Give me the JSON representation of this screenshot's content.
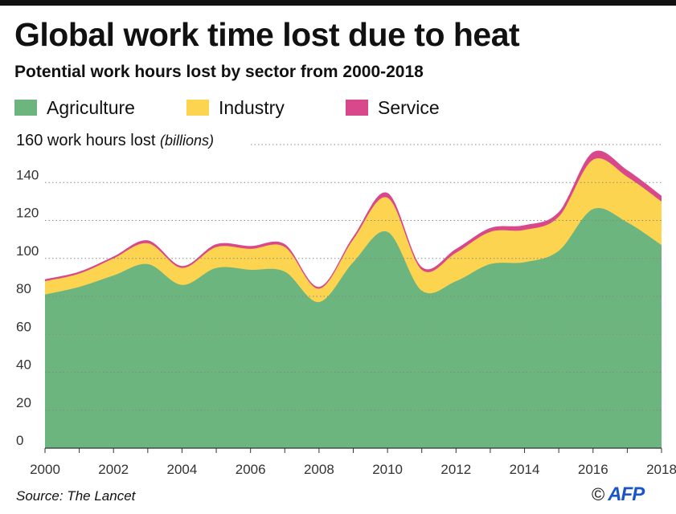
{
  "header": {
    "title": "Global work time lost due to heat",
    "subtitle": "Potential work hours lost by sector from 2000-2018"
  },
  "footer": {
    "source": "Source: The Lancet",
    "copyright": "©",
    "agency": "AFP"
  },
  "chart_data": {
    "type": "area",
    "stacked": true,
    "x": [
      2000,
      2001,
      2002,
      2003,
      2004,
      2005,
      2006,
      2007,
      2008,
      2009,
      2010,
      2011,
      2012,
      2013,
      2014,
      2015,
      2016,
      2017,
      2018
    ],
    "series": [
      {
        "name": "Agriculture",
        "color": "#6db57f",
        "values": [
          81,
          85,
          91,
          97,
          86,
          95,
          94,
          93,
          77,
          98,
          114,
          83,
          88,
          97,
          98,
          104,
          126,
          119,
          107
        ]
      },
      {
        "name": "Industry",
        "color": "#fdd44f",
        "values": [
          7,
          7,
          9,
          11,
          9,
          11,
          11,
          13,
          7,
          12,
          18,
          11,
          15,
          17,
          17,
          18,
          26,
          24,
          23
        ]
      },
      {
        "name": "Service",
        "color": "#d9488a",
        "values": [
          1,
          1,
          1,
          1.5,
          1,
          1.5,
          1.5,
          1.5,
          1,
          1.5,
          2.5,
          1.5,
          2,
          2,
          2.5,
          2.5,
          4,
          3.5,
          3
        ]
      }
    ],
    "ylabel_main": "160 work hours lost",
    "ylabel_unit": "(billions)",
    "ylim": [
      0,
      160
    ],
    "yticks": [
      0,
      20,
      40,
      60,
      80,
      100,
      120,
      140
    ],
    "xticks": [
      2000,
      2002,
      2004,
      2006,
      2008,
      2010,
      2012,
      2014,
      2016,
      2018
    ],
    "grid": "dotted-horizontal",
    "legend_position": "top-left"
  }
}
